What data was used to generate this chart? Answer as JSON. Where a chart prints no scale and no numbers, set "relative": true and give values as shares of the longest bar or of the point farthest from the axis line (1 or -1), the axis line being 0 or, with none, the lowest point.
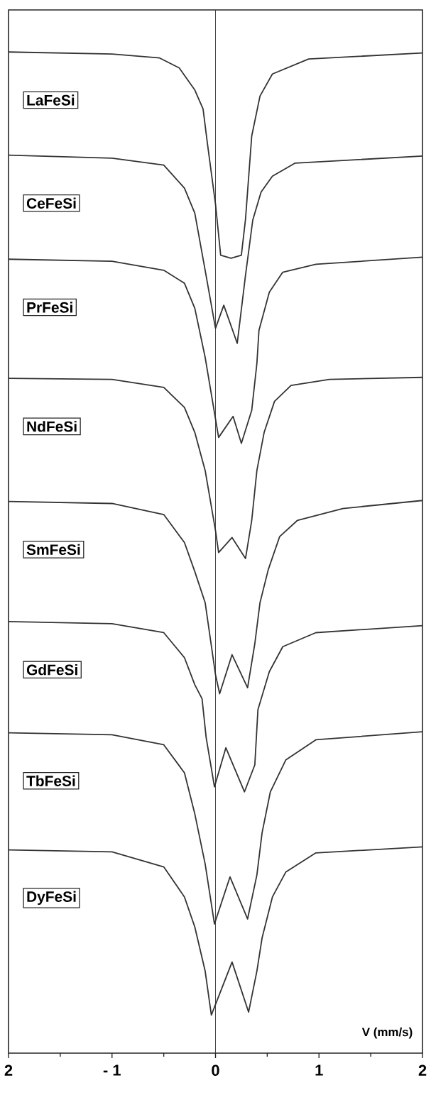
{
  "chart_data": {
    "type": "line",
    "relative": true,
    "xlabel": "V   (mm/s)",
    "xlim": [
      -2,
      2
    ],
    "xticks": [
      {
        "value": -2,
        "label": "2"
      },
      {
        "value": -1,
        "label": "- 1"
      },
      0,
      1,
      2
    ],
    "ref_lines": [
      {
        "axis": "x",
        "value": 0,
        "color": "#333333"
      }
    ],
    "series": [
      {
        "name": "LaFeSi",
        "color": "#333333",
        "x": [
          -2,
          -1,
          -0.54,
          -0.35,
          -0.2,
          -0.12,
          -0.08,
          0,
          0.05,
          0.15,
          0.25,
          0.29,
          0.35,
          0.43,
          0.55,
          0.9,
          2
        ],
        "values": [
          1.0,
          0.998,
          0.994,
          0.984,
          0.962,
          0.943,
          0.91,
          0.848,
          0.797,
          0.794,
          0.797,
          0.833,
          0.916,
          0.956,
          0.978,
          0.993,
          0.999
        ]
      },
      {
        "name": "CeFeSi",
        "color": "#333333",
        "x": [
          -2,
          -1,
          -0.5,
          -0.3,
          -0.2,
          -0.1,
          0,
          0.08,
          0.21,
          0.29,
          0.36,
          0.44,
          0.55,
          0.77,
          2
        ],
        "values": [
          0.897,
          0.894,
          0.887,
          0.864,
          0.839,
          0.782,
          0.724,
          0.747,
          0.709,
          0.777,
          0.832,
          0.86,
          0.876,
          0.889,
          0.896
        ]
      },
      {
        "name": "PrFeSi",
        "color": "#333333",
        "x": [
          -2,
          -1,
          -0.5,
          -0.3,
          -0.2,
          -0.1,
          0.03,
          0.17,
          0.25,
          0.35,
          0.4,
          0.42,
          0.52,
          0.65,
          0.97,
          2
        ],
        "values": [
          0.793,
          0.791,
          0.782,
          0.769,
          0.744,
          0.695,
          0.615,
          0.636,
          0.609,
          0.642,
          0.689,
          0.722,
          0.76,
          0.78,
          0.788,
          0.795
        ]
      },
      {
        "name": "NdFeSi",
        "color": "#333333",
        "x": [
          -2,
          -1,
          -0.5,
          -0.3,
          -0.2,
          -0.1,
          0,
          0.03,
          0.16,
          0.29,
          0.35,
          0.4,
          0.47,
          0.57,
          0.73,
          1.1,
          2
        ],
        "values": [
          0.674,
          0.673,
          0.665,
          0.645,
          0.62,
          0.582,
          0.522,
          0.5,
          0.515,
          0.494,
          0.532,
          0.582,
          0.62,
          0.651,
          0.667,
          0.673,
          0.675
        ]
      },
      {
        "name": "SmFeSi",
        "color": "#333333",
        "x": [
          -2,
          -1,
          -0.5,
          -0.3,
          -0.2,
          -0.1,
          0,
          0.04,
          0.16,
          0.31,
          0.38,
          0.43,
          0.51,
          0.62,
          0.79,
          1.23,
          2
        ],
        "values": [
          0.551,
          0.549,
          0.538,
          0.51,
          0.481,
          0.45,
          0.378,
          0.359,
          0.398,
          0.365,
          0.409,
          0.45,
          0.483,
          0.516,
          0.532,
          0.544,
          0.552
        ]
      },
      {
        "name": "GdFeSi",
        "color": "#333333",
        "x": [
          -2,
          -1,
          -0.5,
          -0.3,
          -0.2,
          -0.13,
          -0.09,
          -0.01,
          0.1,
          0.28,
          0.38,
          0.41,
          0.52,
          0.65,
          0.97,
          2
        ],
        "values": [
          0.431,
          0.429,
          0.42,
          0.395,
          0.368,
          0.354,
          0.315,
          0.266,
          0.305,
          0.261,
          0.288,
          0.343,
          0.381,
          0.406,
          0.42,
          0.427
        ]
      },
      {
        "name": "TbFeSi",
        "color": "#333333",
        "x": [
          -2,
          -1,
          -0.5,
          -0.3,
          -0.2,
          -0.1,
          -0.01,
          0.14,
          0.31,
          0.4,
          0.45,
          0.53,
          0.68,
          0.97,
          2
        ],
        "values": [
          0.32,
          0.318,
          0.308,
          0.28,
          0.239,
          0.189,
          0.129,
          0.176,
          0.134,
          0.178,
          0.22,
          0.261,
          0.293,
          0.313,
          0.321
        ]
      },
      {
        "name": "DyFeSi",
        "color": "#333333",
        "x": [
          -2,
          -1,
          -0.5,
          -0.3,
          -0.2,
          -0.1,
          -0.04,
          0.16,
          0.32,
          0.4,
          0.45,
          0.55,
          0.68,
          0.97,
          2
        ],
        "values": [
          0.203,
          0.201,
          0.186,
          0.156,
          0.126,
          0.082,
          0.038,
          0.091,
          0.041,
          0.082,
          0.115,
          0.156,
          0.181,
          0.2,
          0.206
        ]
      }
    ]
  }
}
